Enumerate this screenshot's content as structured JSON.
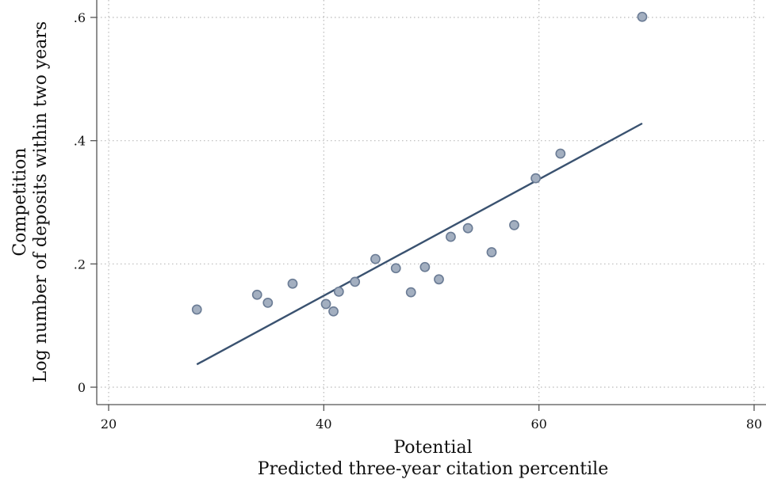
{
  "chart_data": {
    "type": "scatter",
    "xlabel": [
      "Potential",
      "Predicted three-year citation percentile"
    ],
    "ylabel": [
      "Competition",
      "Log number of deposits within two years"
    ],
    "xlim": [
      20,
      80
    ],
    "ylim": [
      0,
      0.6
    ],
    "xticks": [
      20,
      40,
      60,
      80
    ],
    "xtick_labels": [
      "20",
      "40",
      "60",
      "80"
    ],
    "yticks": [
      0,
      0.2,
      0.4,
      0.6
    ],
    "ytick_labels": [
      "0",
      ".2",
      ".4",
      ".6"
    ],
    "grid": true,
    "series": [
      {
        "type": "scatter",
        "color": "#a3afc0",
        "x": [
          28.2,
          33.8,
          34.8,
          37.1,
          40.2,
          40.9,
          41.4,
          42.9,
          44.8,
          46.7,
          48.1,
          49.4,
          50.7,
          51.8,
          53.4,
          55.6,
          57.7,
          59.7,
          62.0,
          69.6
        ],
        "y": [
          0.126,
          0.15,
          0.137,
          0.168,
          0.135,
          0.123,
          0.155,
          0.171,
          0.208,
          0.193,
          0.154,
          0.195,
          0.175,
          0.244,
          0.258,
          0.219,
          0.263,
          0.339,
          0.379,
          0.601
        ]
      },
      {
        "type": "line",
        "color": "#3a5270",
        "x": [
          28.2,
          69.6
        ],
        "y": [
          0.037,
          0.428
        ]
      }
    ]
  }
}
